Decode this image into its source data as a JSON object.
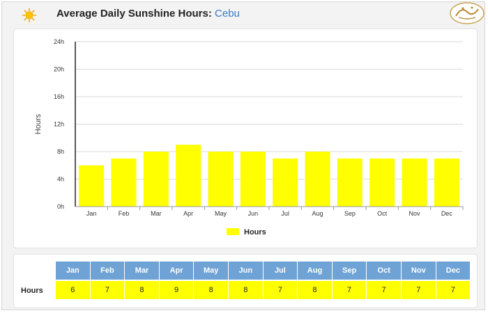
{
  "header": {
    "title": "Average Daily Sunshine Hours:",
    "city": "Cebu",
    "logo_text": "أيشم"
  },
  "colors": {
    "bar": "#ffff00",
    "table_header": "#6fa3d6",
    "city": "#3b7bbf"
  },
  "icons": {
    "header_icon": "sun-icon"
  },
  "chart_data": {
    "type": "bar",
    "categories": [
      "Jan",
      "Feb",
      "Mar",
      "Apr",
      "May",
      "Jun",
      "Jul",
      "Aug",
      "Sep",
      "Oct",
      "Nov",
      "Dec"
    ],
    "series": [
      {
        "name": "Hours",
        "values": [
          6,
          7,
          8,
          9,
          8,
          8,
          7,
          8,
          7,
          7,
          7,
          7
        ]
      }
    ],
    "title": "Average Daily Sunshine Hours: Cebu",
    "xlabel": "",
    "ylabel": "Hours",
    "ylim": [
      0,
      24
    ],
    "yticks": [
      "0h",
      "4h",
      "8h",
      "12h",
      "16h",
      "20h",
      "24h"
    ],
    "grid": true,
    "legend": "bottom"
  },
  "table": {
    "row_label": "Hours",
    "months": [
      "Jan",
      "Feb",
      "Mar",
      "Apr",
      "May",
      "Jun",
      "Jul",
      "Aug",
      "Sep",
      "Oct",
      "Nov",
      "Dec"
    ],
    "values": [
      "6",
      "7",
      "8",
      "9",
      "8",
      "8",
      "7",
      "8",
      "7",
      "7",
      "7",
      "7"
    ]
  }
}
